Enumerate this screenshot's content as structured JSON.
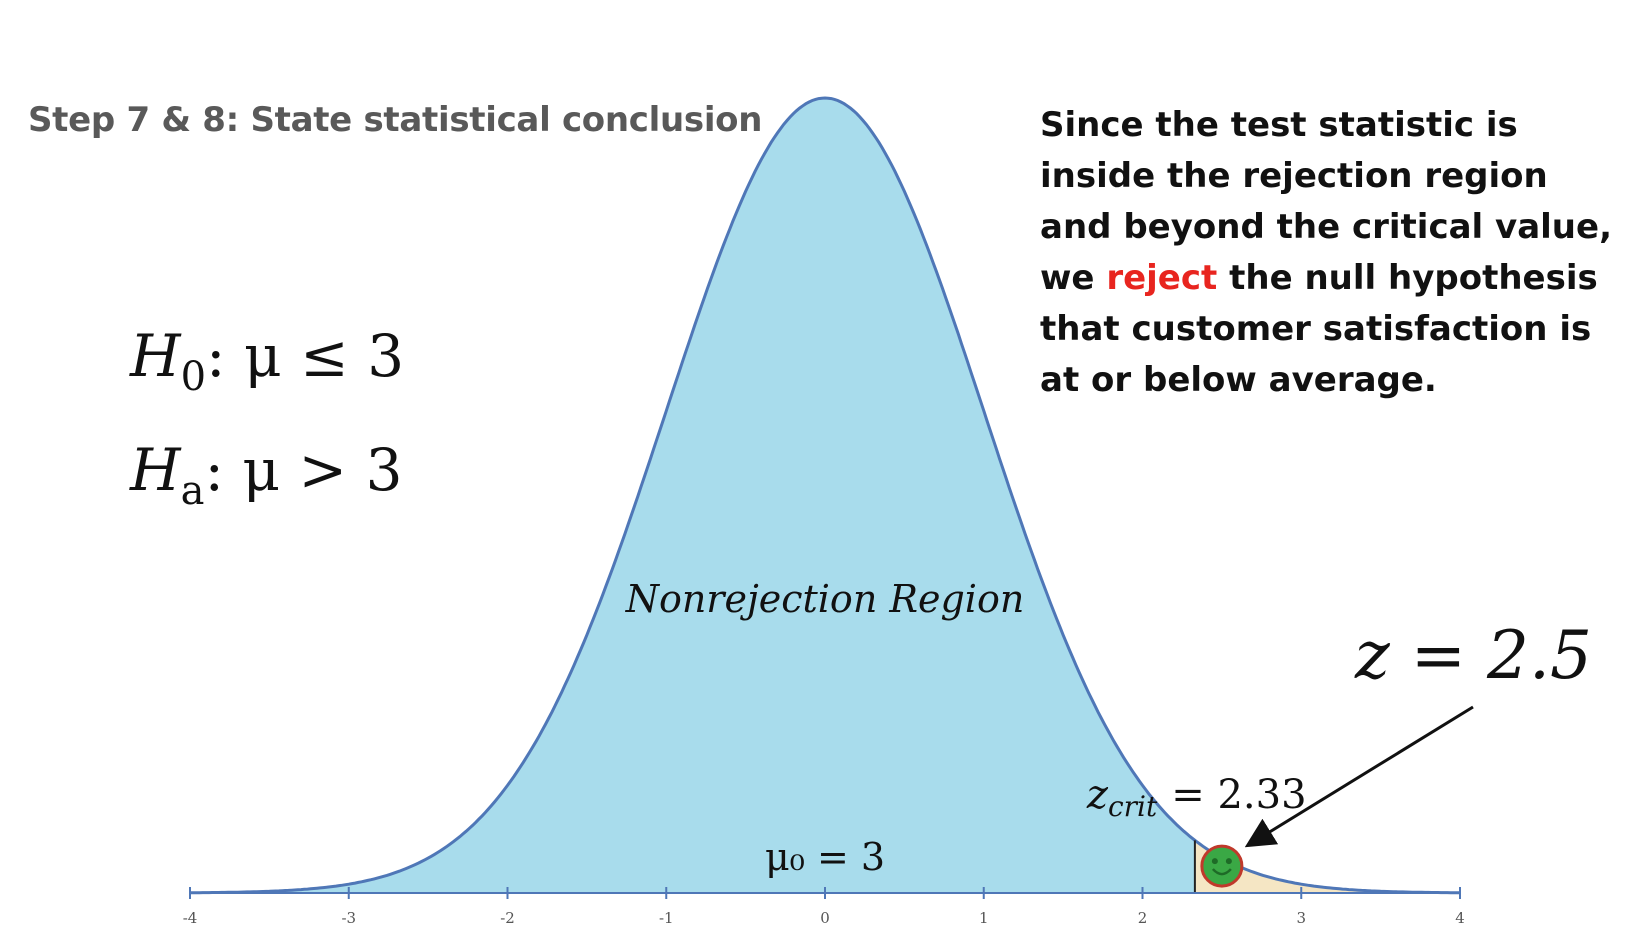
{
  "slide": {
    "title": "Step 7 & 8: State statistical conclusion",
    "conclusion": {
      "before": "Since the test statistic is inside the rejection region and beyond the critical value, we",
      "highlight": "reject",
      "after": "the null hypothesis that customer satisfaction is at or below average."
    },
    "hypotheses": {
      "h0": {
        "sym": "H",
        "sub": "0",
        "rest": ": μ ≤ 3"
      },
      "ha": {
        "sym": "H",
        "sub": "a",
        "rest": ": μ > 3"
      }
    }
  },
  "chart_data": {
    "type": "area",
    "distribution": "standard normal",
    "xlim": [
      -4,
      4
    ],
    "ticks": [
      "-4",
      "-3",
      "-2",
      "-1",
      "0",
      "1",
      "2",
      "3",
      "4"
    ],
    "region_label": "Nonrejection Region",
    "mu_label": "μ₀ = 3",
    "zcrit": 2.33,
    "zcrit_label_sym": "z",
    "zcrit_label_sub": "crit",
    "zcrit_label_rest": "= 2.33",
    "z_stat": 2.5,
    "z_label": "z = 2.5",
    "colors": {
      "nonrejection_fill": "#a8dcec",
      "rejection_fill": "#f5e6c4",
      "curve": "#4f77b7",
      "axis": "#4f77b7",
      "marker_fill": "#3aa845",
      "marker_stroke": "#c0392b",
      "highlight": "#e8251f"
    }
  }
}
